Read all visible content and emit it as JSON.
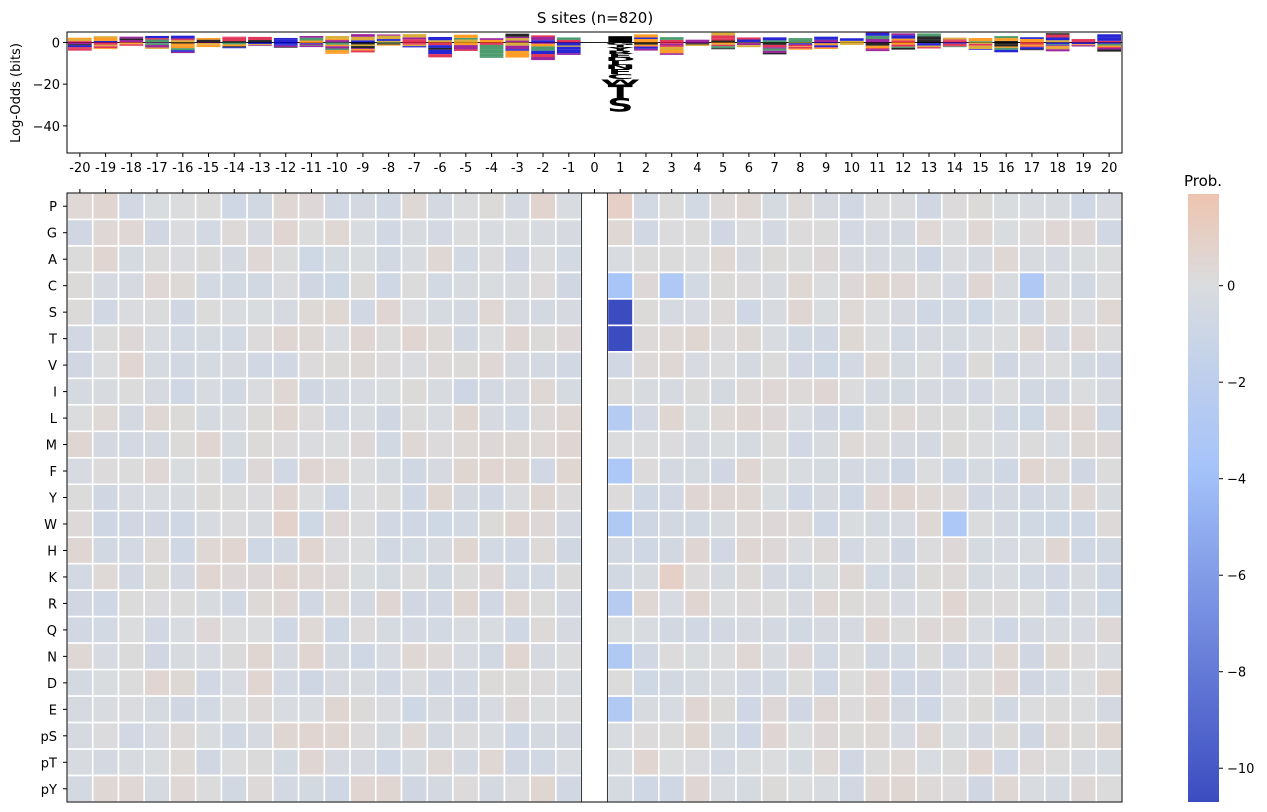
{
  "chart_data": [
    {
      "type": "logo",
      "title": "S sites (n=820)",
      "ylabel": "Log-Odds (bits)",
      "ylim": [
        -53,
        5
      ],
      "yticks": [
        0,
        -20,
        -40
      ],
      "ytick_labels": [
        "0",
        "−20",
        "−40"
      ],
      "positions": [
        -20,
        -19,
        -18,
        -17,
        -16,
        -15,
        -14,
        -13,
        -12,
        -11,
        -10,
        -9,
        -8,
        -7,
        -6,
        -5,
        -4,
        -3,
        -2,
        -1,
        0,
        1,
        2,
        3,
        4,
        5,
        6,
        7,
        8,
        9,
        10,
        11,
        12,
        13,
        14,
        15,
        16,
        17,
        18,
        19,
        20
      ],
      "position_labels": [
        "-20",
        "-19",
        "-18",
        "-17",
        "-16",
        "-15",
        "-14",
        "-13",
        "-12",
        "-11",
        "-10",
        "-9",
        "-8",
        "-7",
        "-6",
        "-5",
        "-4",
        "-3",
        "-2",
        "-1",
        "0",
        "1",
        "2",
        "3",
        "4",
        "5",
        "6",
        "7",
        "8",
        "9",
        "10",
        "11",
        "12",
        "13",
        "14",
        "15",
        "16",
        "17",
        "18",
        "19",
        "20"
      ],
      "position_plus1_stack": [
        {
          "letter": "S",
          "value": -6.5,
          "color": "#8b008b"
        },
        {
          "letter": "T",
          "value": -6.5,
          "color": "#8b008b"
        },
        {
          "letter": "W",
          "value": -2.6,
          "color": "#d4a017"
        },
        {
          "letter": "C",
          "value": -2.4,
          "color": "#d4a017"
        },
        {
          "letter": "F",
          "value": -2.3,
          "color": "#0000cd"
        },
        {
          "letter": "N",
          "value": -2.0,
          "color": "#8b008b"
        },
        {
          "letter": "L",
          "value": -1.8,
          "color": "#0000cd"
        },
        {
          "letter": "D",
          "value": -1.8,
          "color": "#dc143c"
        },
        {
          "letter": "E",
          "value": -1.7,
          "color": "#dc143c"
        },
        {
          "letter": "R",
          "value": -1.6,
          "color": "#0000cd"
        },
        {
          "letter": "Y",
          "value": -1.4,
          "color": "#2e8b57"
        },
        {
          "letter": "I",
          "value": -1.3,
          "color": "#d4a017"
        },
        {
          "letter": "G",
          "value": -1.2,
          "color": "#2e8b57"
        }
      ]
    },
    {
      "type": "heatmap",
      "colorbar_title": "Prob.",
      "colorbar_range": [
        -10.7,
        1.9
      ],
      "colorbar_ticks": [
        0,
        -2,
        -4,
        -6,
        -8,
        -10
      ],
      "colorbar_tick_labels": [
        "0",
        "−2",
        "−4",
        "−6",
        "−8",
        "−10"
      ],
      "columns": [
        "-20",
        "-19",
        "-18",
        "-17",
        "-16",
        "-15",
        "-14",
        "-13",
        "-12",
        "-11",
        "-10",
        "-9",
        "-8",
        "-7",
        "-6",
        "-5",
        "-4",
        "-3",
        "-2",
        "-1",
        "0",
        "1",
        "2",
        "3",
        "4",
        "5",
        "6",
        "7",
        "8",
        "9",
        "10",
        "11",
        "12",
        "13",
        "14",
        "15",
        "16",
        "17",
        "18",
        "19",
        "20"
      ],
      "rows": [
        "P",
        "G",
        "A",
        "C",
        "S",
        "T",
        "V",
        "I",
        "L",
        "M",
        "F",
        "Y",
        "W",
        "H",
        "K",
        "R",
        "Q",
        "N",
        "D",
        "E",
        "pS",
        "pT",
        "pY"
      ],
      "notable_values": [
        {
          "row": "S",
          "col": "1",
          "value": -10.7
        },
        {
          "row": "T",
          "col": "1",
          "value": -10.7
        },
        {
          "row": "P",
          "col": "1",
          "value": 1.0
        },
        {
          "row": "P",
          "col": "-2",
          "value": 0.7
        },
        {
          "row": "K",
          "col": "3",
          "value": 1.0
        },
        {
          "row": "C",
          "col": "3",
          "value": -3.0
        },
        {
          "row": "C",
          "col": "17",
          "value": -3.0
        },
        {
          "row": "W",
          "col": "14",
          "value": -3.2
        },
        {
          "row": "W",
          "col": "-12",
          "value": 0.8
        },
        {
          "row": "C",
          "col": "1",
          "value": -3.5
        },
        {
          "row": "F",
          "col": "1",
          "value": -3.2
        },
        {
          "row": "N",
          "col": "1",
          "value": -3.0
        },
        {
          "row": "E",
          "col": "1",
          "value": -2.8
        },
        {
          "row": "W",
          "col": "1",
          "value": -3.0
        },
        {
          "row": "R",
          "col": "1",
          "value": -2.5
        },
        {
          "row": "L",
          "col": "1",
          "value": -2.6
        }
      ],
      "missing_column": "0"
    }
  ]
}
